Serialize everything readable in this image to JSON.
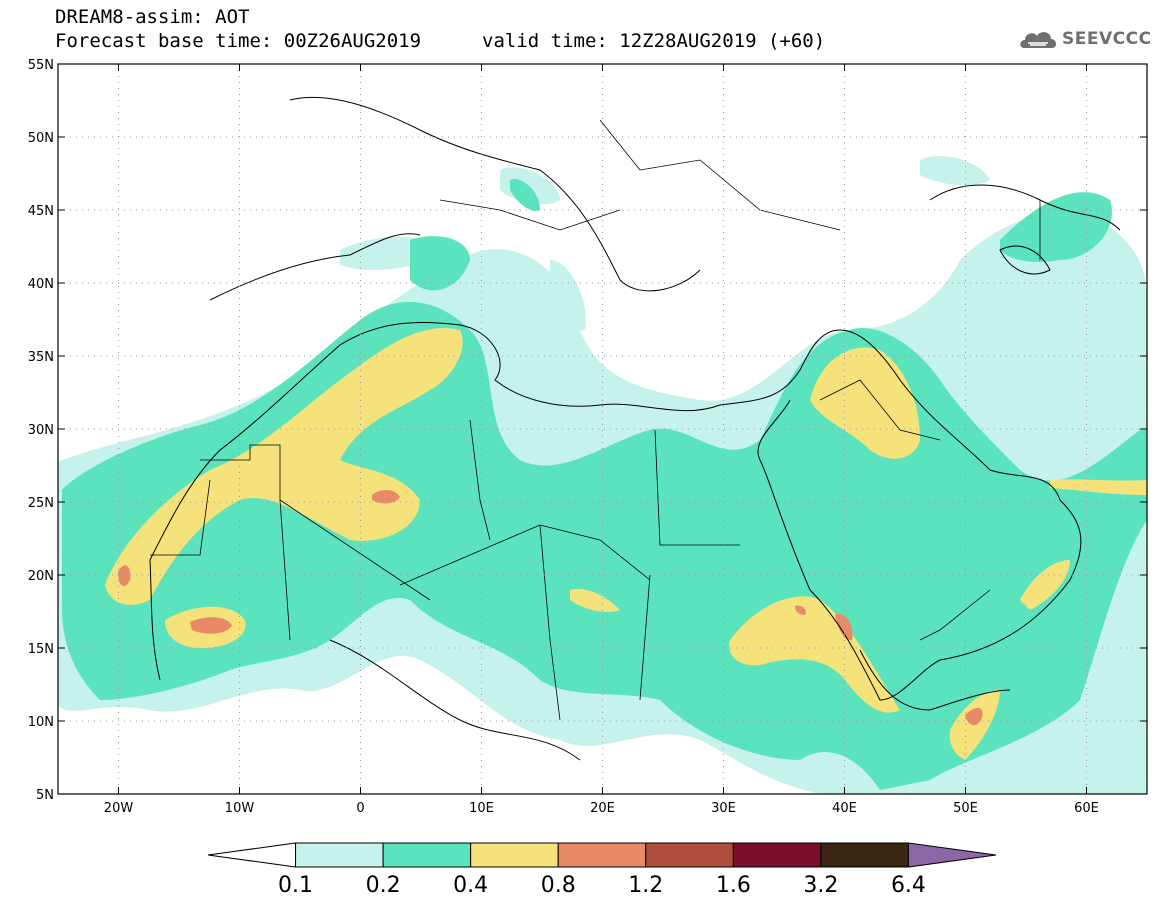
{
  "header": {
    "title": "DREAM8-assim: AOT",
    "base_time": "Forecast base time: 00Z26AUG2019",
    "valid_time": "valid time: 12Z28AUG2019 (+60)"
  },
  "logo": {
    "text": "SEEVCCC",
    "icon": "cloud-icon"
  },
  "map": {
    "lon_range": [
      -25,
      65
    ],
    "lat_range": [
      5,
      55
    ],
    "lat_ticks": [
      "5N",
      "10N",
      "15N",
      "20N",
      "25N",
      "30N",
      "35N",
      "40N",
      "45N",
      "50N",
      "55N"
    ],
    "lon_ticks": [
      "20W",
      "10W",
      "0",
      "10E",
      "20E",
      "30E",
      "40E",
      "50E",
      "60E"
    ],
    "grid": "dotted"
  },
  "colorbar": {
    "labels": [
      "0.1",
      "0.2",
      "0.4",
      "0.8",
      "1.2",
      "1.6",
      "3.2",
      "6.4"
    ],
    "colors": [
      "#ffffff",
      "#c5f2ea",
      "#5be3bd",
      "#f5e27a",
      "#e98a67",
      "#b04e3e",
      "#7a0f2c",
      "#3a2613",
      "#8d66a6"
    ]
  }
}
